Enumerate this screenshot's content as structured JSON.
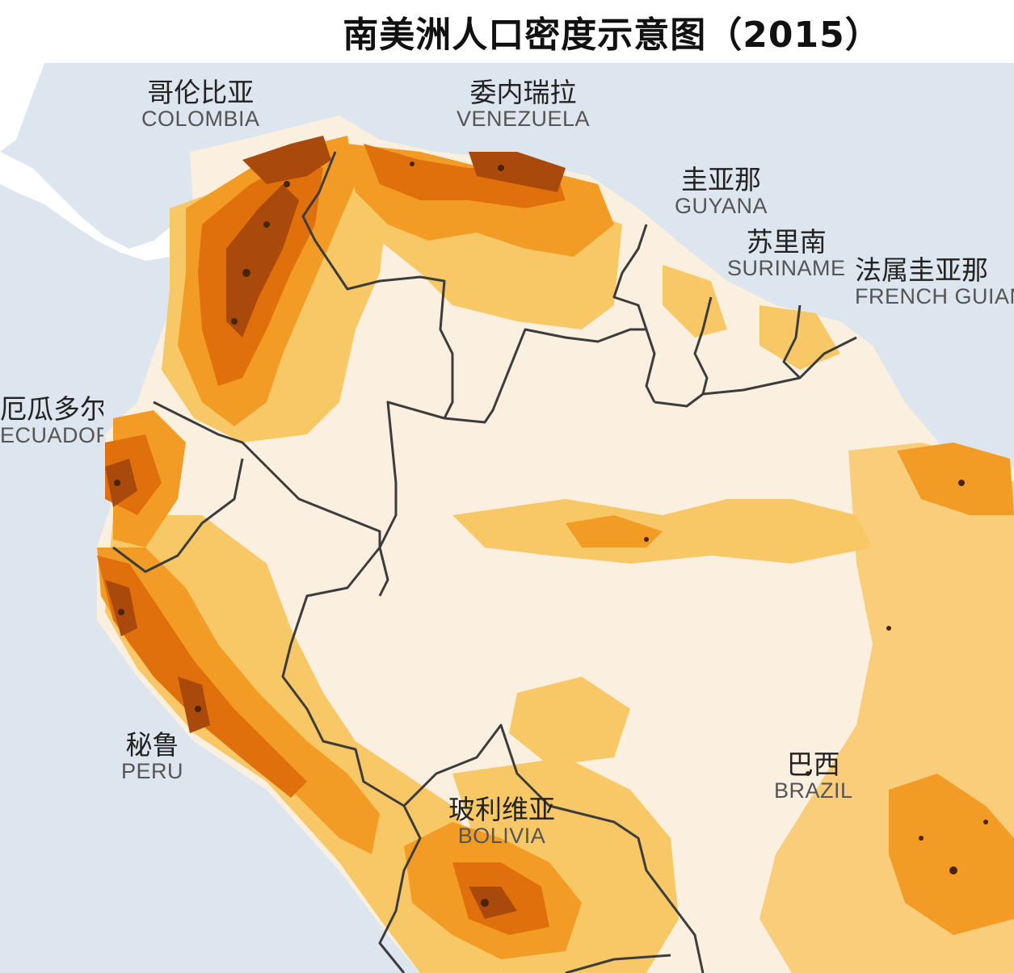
{
  "title": "南美洲人口密度示意图（2015）",
  "colors": {
    "ocean": "#dde6ee",
    "land_low": "#fbf0e0",
    "density_1": "#f8c766",
    "density_2": "#f39c25",
    "density_3": "#e0700c",
    "density_4": "#a9490b",
    "density_5": "#4a2409",
    "border": "#3c3c3c"
  },
  "countries": [
    {
      "id": "colombia",
      "zh": "哥伦比亚",
      "en": "COLOMBIA"
    },
    {
      "id": "venezuela",
      "zh": "委内瑞拉",
      "en": "VENEZUELA"
    },
    {
      "id": "guyana",
      "zh": "圭亚那",
      "en": "GUYANA"
    },
    {
      "id": "suriname",
      "zh": "苏里南",
      "en": "SURINAME"
    },
    {
      "id": "french-guiana",
      "zh": "法属圭亚那",
      "en": "FRENCH GUIANA"
    },
    {
      "id": "ecuador",
      "zh": "厄瓜多尔",
      "en": "ECUADOR"
    },
    {
      "id": "peru",
      "zh": "秘鲁",
      "en": "PERU"
    },
    {
      "id": "bolivia",
      "zh": "玻利维亚",
      "en": "BOLIVIA"
    },
    {
      "id": "brazil",
      "zh": "巴西",
      "en": "BRAZIL"
    }
  ]
}
